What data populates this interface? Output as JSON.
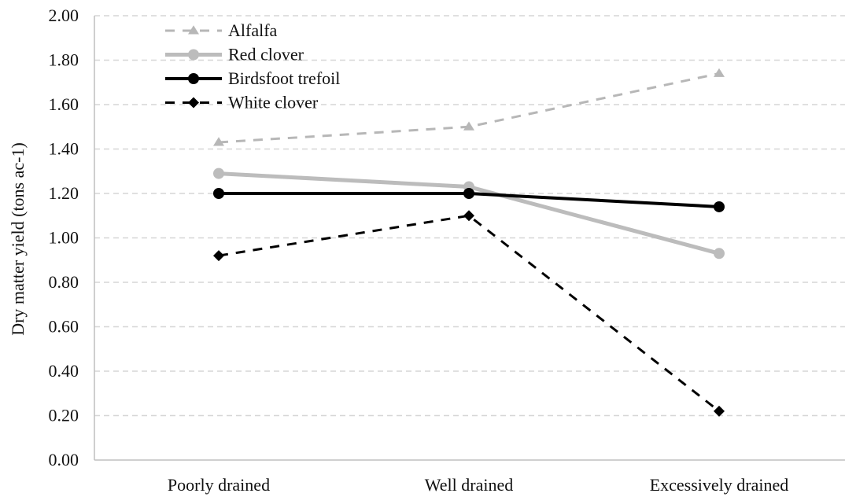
{
  "chart_data": {
    "type": "line",
    "title": "",
    "xlabel": "",
    "ylabel": "Dry matter yield (tons ac-1)",
    "categories": [
      "Poorly drained",
      "Well drained",
      "Excessively drained"
    ],
    "ylim": [
      0,
      2
    ],
    "yticks": [
      "0.00",
      "0.20",
      "0.40",
      "0.60",
      "0.80",
      "1.00",
      "1.20",
      "1.40",
      "1.60",
      "1.80",
      "2.00"
    ],
    "grid": true,
    "legend_position": "top-left",
    "series": [
      {
        "name": "Alfalfa",
        "values": [
          1.43,
          1.5,
          1.74
        ],
        "color": "#b7b7b7",
        "line_style": "dashed",
        "marker": "triangle"
      },
      {
        "name": "Red clover",
        "values": [
          1.29,
          1.23,
          0.93
        ],
        "color": "#bcbcbc",
        "line_style": "solid",
        "marker": "circle"
      },
      {
        "name": "Birdsfoot trefoil",
        "values": [
          1.2,
          1.2,
          1.14
        ],
        "color": "#000000",
        "line_style": "solid",
        "marker": "circle"
      },
      {
        "name": "White clover",
        "values": [
          0.92,
          1.1,
          0.22
        ],
        "color": "#000000",
        "line_style": "dashed",
        "marker": "diamond"
      }
    ]
  }
}
